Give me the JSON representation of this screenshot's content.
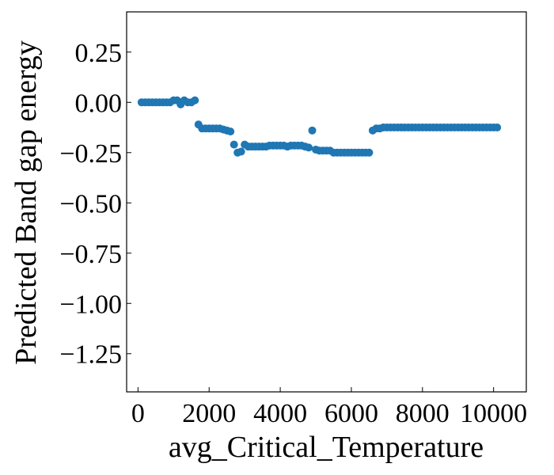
{
  "chart_data": {
    "type": "scatter",
    "title": "",
    "xlabel": "avg_Critical_Temperature",
    "ylabel": "Predicted Band gap energy",
    "xlim": [
      -320,
      10920
    ],
    "ylim": [
      -1.44,
      0.45
    ],
    "xticks": [
      0,
      2000,
      4000,
      6000,
      8000,
      10000
    ],
    "xtick_labels": [
      "0",
      "2000",
      "4000",
      "6000",
      "8000",
      "10000"
    ],
    "yticks": [
      0.25,
      0.0,
      -0.25,
      -0.5,
      -0.75,
      -1.0,
      -1.25
    ],
    "ytick_labels": [
      "0.25",
      "0.00",
      "−0.25",
      "−0.50",
      "−0.75",
      "−1.00",
      "−1.25"
    ],
    "grid": false,
    "legend": "none",
    "marker_color": "#1f77b4",
    "series": [
      {
        "x": [
          100,
          200,
          300,
          400,
          500,
          600,
          700,
          800,
          900,
          1000,
          1100,
          1200,
          1300,
          1400,
          1500,
          1600,
          1700,
          1800,
          1900,
          2000,
          2100,
          2200,
          2300,
          2400,
          2500,
          2600,
          2700,
          2800,
          2900,
          3000,
          3100,
          3200,
          3300,
          3400,
          3500,
          3600,
          3700,
          3800,
          3900,
          4000,
          4100,
          4200,
          4300,
          4400,
          4500,
          4600,
          4700,
          4800,
          4900,
          5000,
          5100,
          5200,
          5300,
          5400,
          5500,
          5600,
          5700,
          5800,
          5900,
          6000,
          6100,
          6200,
          6300,
          6400,
          6500,
          6600,
          6700,
          6800,
          6900,
          7000,
          7100,
          7200,
          7300,
          7400,
          7500,
          7600,
          7700,
          7800,
          7900,
          8000,
          8100,
          8200,
          8300,
          8400,
          8500,
          8600,
          8700,
          8800,
          8900,
          9000,
          9100,
          9200,
          9300,
          9400,
          9500,
          9600,
          9700,
          9800,
          9900,
          10000,
          10100
        ],
        "y": [
          0.0,
          0.0,
          0.0,
          0.0,
          0.0,
          0.0,
          0.0,
          0.0,
          0.0,
          0.01,
          0.01,
          -0.01,
          0.01,
          0.0,
          0.0,
          0.01,
          -0.11,
          -0.13,
          -0.13,
          -0.13,
          -0.13,
          -0.13,
          -0.13,
          -0.135,
          -0.14,
          -0.145,
          -0.21,
          -0.25,
          -0.245,
          -0.21,
          -0.22,
          -0.22,
          -0.22,
          -0.22,
          -0.22,
          -0.22,
          -0.215,
          -0.215,
          -0.215,
          -0.215,
          -0.215,
          -0.22,
          -0.215,
          -0.215,
          -0.215,
          -0.215,
          -0.22,
          -0.225,
          -0.14,
          -0.235,
          -0.24,
          -0.24,
          -0.24,
          -0.24,
          -0.25,
          -0.25,
          -0.25,
          -0.25,
          -0.25,
          -0.25,
          -0.25,
          -0.25,
          -0.25,
          -0.25,
          -0.25,
          -0.14,
          -0.13,
          -0.13,
          -0.125,
          -0.125,
          -0.125,
          -0.125,
          -0.125,
          -0.125,
          -0.125,
          -0.125,
          -0.125,
          -0.125,
          -0.125,
          -0.125,
          -0.125,
          -0.125,
          -0.125,
          -0.125,
          -0.125,
          -0.125,
          -0.125,
          -0.125,
          -0.125,
          -0.125,
          -0.125,
          -0.125,
          -0.125,
          -0.125,
          -0.125,
          -0.125,
          -0.125,
          -0.125,
          -0.125,
          -0.125,
          -0.125
        ]
      }
    ]
  }
}
